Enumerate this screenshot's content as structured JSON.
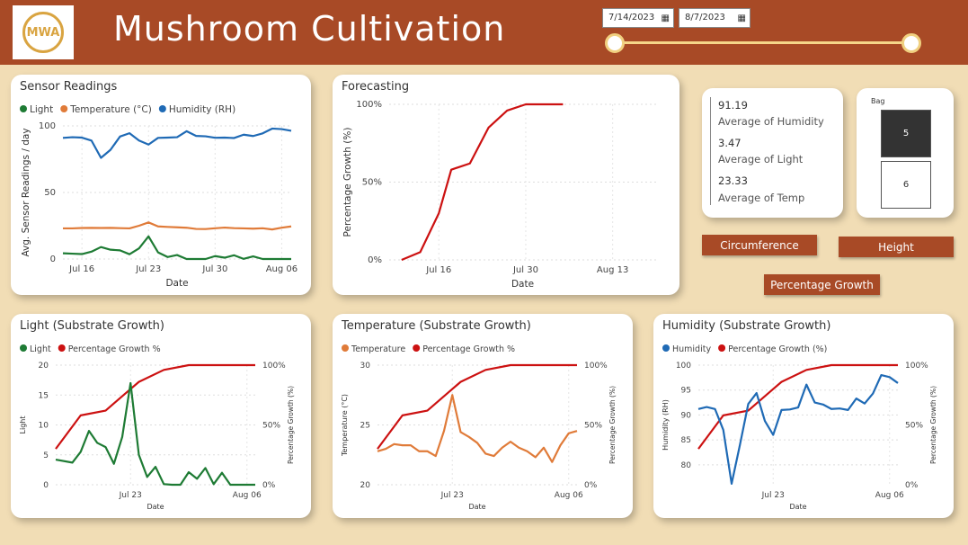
{
  "header": {
    "logo_text": "MWA",
    "title": "Mushroom Cultivation",
    "date_start": "7/14/2023",
    "date_end": "8/7/2023"
  },
  "sensor": {
    "title": "Sensor Readings",
    "legend": [
      "Light",
      "Temperature (°C)",
      "Humidity (RH)"
    ],
    "ylabel": "Avg. Sensor Readings / day",
    "xlabel": "Date",
    "yticks": [
      "100",
      "50",
      "0"
    ],
    "xticks": [
      "Jul 16",
      "Jul 23",
      "Jul 30",
      "Aug 06"
    ]
  },
  "forecast": {
    "title": "Forecasting",
    "ylabel": "Percentage Growth (%)",
    "xlabel": "Date",
    "yticks": [
      "100%",
      "50%",
      "0%"
    ],
    "xticks": [
      "Jul 16",
      "Jul 30",
      "Aug 13"
    ]
  },
  "kpi": {
    "humidity_value": "91.19",
    "humidity_label": "Average of Humidity",
    "light_value": "3.47",
    "light_label": "Average of Light",
    "temp_value": "23.33",
    "temp_label": "Average of Temp"
  },
  "bag": {
    "label": "Bag",
    "options": [
      "5",
      "6"
    ]
  },
  "buttons": {
    "circumference": "Circumference",
    "height": "Height",
    "growth": "Percentage Growth"
  },
  "light_chart": {
    "title": "Light (Substrate Growth)",
    "legend": [
      "Light",
      "Percentage Growth %"
    ],
    "ylabel": "Light",
    "y2label": "Percentage Growth (%)",
    "xlabel": "Date",
    "yticks": [
      "20",
      "15",
      "10",
      "5",
      "0"
    ],
    "y2ticks": [
      "100%",
      "50%",
      "0%"
    ],
    "xticks": [
      "Jul 23",
      "Aug 06"
    ]
  },
  "temp_chart": {
    "title": "Temperature (Substrate Growth)",
    "legend": [
      "Temperature",
      "Percentage Growth %"
    ],
    "ylabel": "Temperature (°C)",
    "y2label": "Percentage Growth (%)",
    "xlabel": "Date",
    "yticks": [
      "30",
      "25",
      "20"
    ],
    "y2ticks": [
      "100%",
      "50%",
      "0%"
    ],
    "xticks": [
      "Jul 23",
      "Aug 06"
    ]
  },
  "hum_chart": {
    "title": "Humidity (Substrate Growth)",
    "legend": [
      "Humidity",
      "Percentage Growth (%)"
    ],
    "ylabel": "Humidity (RH)",
    "y2label": "Percentage Growth (%)",
    "xlabel": "Date",
    "yticks": [
      "100",
      "95",
      "90",
      "85",
      "80"
    ],
    "y2ticks": [
      "100%",
      "50%",
      "0%"
    ],
    "xticks": [
      "Jul 23",
      "Aug 06"
    ]
  },
  "colors": {
    "header": "#a84a26",
    "light": "#1e7b34",
    "temperature": "#e07b39",
    "humidity": "#1f6ab5",
    "growth": "#cc1111",
    "background": "#f1ddb5"
  },
  "chart_data": [
    {
      "type": "line",
      "title": "Sensor Readings",
      "xlabel": "Date",
      "ylabel": "Avg. Sensor Readings / day",
      "x": [
        "2023-07-14",
        "2023-07-15",
        "2023-07-16",
        "2023-07-17",
        "2023-07-18",
        "2023-07-19",
        "2023-07-20",
        "2023-07-21",
        "2023-07-22",
        "2023-07-23",
        "2023-07-24",
        "2023-07-25",
        "2023-07-26",
        "2023-07-27",
        "2023-07-28",
        "2023-07-29",
        "2023-07-30",
        "2023-07-31",
        "2023-08-01",
        "2023-08-02",
        "2023-08-03",
        "2023-08-04",
        "2023-08-05",
        "2023-08-06",
        "2023-08-07"
      ],
      "ylim": [
        0,
        100
      ],
      "series": [
        {
          "name": "Light",
          "values": [
            4.3,
            4,
            3.7,
            5.5,
            9,
            7,
            6.5,
            3.6,
            8,
            17,
            5,
            1.5,
            3,
            0,
            0,
            0,
            2.2,
            1,
            2.8,
            0.1,
            2,
            0,
            0,
            0,
            0
          ]
        },
        {
          "name": "Temperature (°C)",
          "values": [
            23,
            23,
            23.3,
            23.4,
            23.3,
            23.4,
            23.2,
            23,
            25,
            27.5,
            24.5,
            24.1,
            23.8,
            23.5,
            22.6,
            22.5,
            23.1,
            23.6,
            23.2,
            23,
            22.8,
            23.1,
            22.2,
            23.5,
            24.5
          ]
        },
        {
          "name": "Humidity (RH)",
          "values": [
            91,
            91.5,
            91.2,
            89,
            76,
            82,
            92,
            94.5,
            89,
            86,
            91,
            91.2,
            91.5,
            96,
            92.5,
            92.2,
            91.1,
            91.2,
            90.9,
            93.4,
            92.4,
            94.4,
            98,
            97.6,
            96.3
          ]
        }
      ],
      "legend": "top-left"
    },
    {
      "type": "line",
      "title": "Forecasting",
      "xlabel": "Date",
      "ylabel": "Percentage Growth (%)",
      "x": [
        "2023-07-10",
        "2023-07-13",
        "2023-07-16",
        "2023-07-18",
        "2023-07-21",
        "2023-07-24",
        "2023-07-27",
        "2023-07-30",
        "2023-08-02",
        "2023-08-05"
      ],
      "values": [
        0,
        5,
        30,
        58,
        62,
        85,
        96,
        100,
        100,
        100
      ],
      "ylim": [
        0,
        100
      ]
    },
    {
      "type": "line",
      "title": "Light (Substrate Growth)",
      "xlabel": "Date",
      "ylabel": "Light",
      "y2label": "Percentage Growth (%)",
      "x": [
        "2023-07-14",
        "2023-07-16",
        "2023-07-17",
        "2023-07-18",
        "2023-07-19",
        "2023-07-20",
        "2023-07-21",
        "2023-07-22",
        "2023-07-23",
        "2023-07-24",
        "2023-07-25",
        "2023-07-26",
        "2023-07-27",
        "2023-07-28",
        "2023-07-29",
        "2023-07-30",
        "2023-07-31",
        "2023-08-01",
        "2023-08-02",
        "2023-08-03",
        "2023-08-04",
        "2023-08-07"
      ],
      "ylim": [
        0,
        20
      ],
      "y2lim": [
        0,
        100
      ],
      "series": [
        {
          "name": "Light",
          "values": [
            4.2,
            3.7,
            5.5,
            9,
            7,
            6.3,
            3.5,
            8,
            17,
            5,
            1.3,
            3,
            0.1,
            0,
            0,
            2.1,
            1,
            2.8,
            0.1,
            2,
            0,
            0
          ]
        },
        {
          "name": "Percentage Growth %",
          "axis": "secondary",
          "x": [
            "2023-07-14",
            "2023-07-17",
            "2023-07-20",
            "2023-07-23",
            "2023-07-24",
            "2023-07-27",
            "2023-07-30",
            "2023-08-07"
          ],
          "values": [
            30,
            58,
            62,
            80,
            86,
            96,
            100,
            100
          ]
        }
      ],
      "legend": "top-left"
    },
    {
      "type": "line",
      "title": "Temperature (Substrate Growth)",
      "xlabel": "Date",
      "ylabel": "Temperature (°C)",
      "y2label": "Percentage Growth (%)",
      "x": [
        "2023-07-14",
        "2023-07-15",
        "2023-07-16",
        "2023-07-17",
        "2023-07-18",
        "2023-07-19",
        "2023-07-20",
        "2023-07-21",
        "2023-07-22",
        "2023-07-23",
        "2023-07-24",
        "2023-07-25",
        "2023-07-26",
        "2023-07-27",
        "2023-07-28",
        "2023-07-29",
        "2023-07-30",
        "2023-07-31",
        "2023-08-01",
        "2023-08-02",
        "2023-08-03",
        "2023-08-04",
        "2023-08-05",
        "2023-08-06",
        "2023-08-07"
      ],
      "ylim": [
        20,
        30
      ],
      "y2lim": [
        0,
        100
      ],
      "series": [
        {
          "name": "Temperature",
          "values": [
            22.8,
            23,
            23.4,
            23.3,
            23.3,
            22.8,
            22.8,
            22.4,
            24.5,
            27.5,
            24.4,
            24,
            23.5,
            22.6,
            22.4,
            23.1,
            23.6,
            23.1,
            22.8,
            22.3,
            23.1,
            21.9,
            23.3,
            24.3,
            24.5
          ]
        },
        {
          "name": "Percentage Growth %",
          "axis": "secondary",
          "x": [
            "2023-07-14",
            "2023-07-17",
            "2023-07-20",
            "2023-07-23",
            "2023-07-24",
            "2023-07-27",
            "2023-07-30",
            "2023-08-07"
          ],
          "values": [
            30,
            58,
            62,
            80,
            86,
            96,
            100,
            100
          ]
        }
      ],
      "legend": "top-left"
    },
    {
      "type": "line",
      "title": "Humidity (Substrate Growth)",
      "xlabel": "Date",
      "ylabel": "Humidity (RH)",
      "y2label": "Percentage Growth (%)",
      "x": [
        "2023-07-14",
        "2023-07-15",
        "2023-07-16",
        "2023-07-17",
        "2023-07-18",
        "2023-07-19",
        "2023-07-20",
        "2023-07-21",
        "2023-07-22",
        "2023-07-23",
        "2023-07-24",
        "2023-07-25",
        "2023-07-26",
        "2023-07-27",
        "2023-07-28",
        "2023-07-29",
        "2023-07-30",
        "2023-07-31",
        "2023-08-01",
        "2023-08-02",
        "2023-08-03",
        "2023-08-04",
        "2023-08-05",
        "2023-08-06",
        "2023-08-07"
      ],
      "ylim": [
        76,
        100
      ],
      "y2lim": [
        0,
        100
      ],
      "series": [
        {
          "name": "Humidity",
          "values": [
            91.2,
            91.6,
            91.2,
            87,
            76.2,
            84,
            92.2,
            94.4,
            88.8,
            86,
            91,
            91.1,
            91.5,
            96.1,
            92.5,
            92.1,
            91.2,
            91.3,
            91,
            93.3,
            92.3,
            94.3,
            98,
            97.6,
            96.4
          ]
        },
        {
          "name": "Percentage Growth (%)",
          "axis": "secondary",
          "x": [
            "2023-07-14",
            "2023-07-17",
            "2023-07-20",
            "2023-07-23",
            "2023-07-24",
            "2023-07-27",
            "2023-07-30",
            "2023-08-07"
          ],
          "values": [
            30,
            58,
            62,
            80,
            86,
            96,
            100,
            100
          ]
        }
      ],
      "legend": "top-left"
    }
  ]
}
